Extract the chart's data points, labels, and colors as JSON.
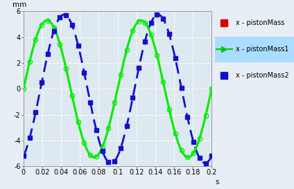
{
  "ylabel": "mm",
  "xlabel": "s",
  "xlim": [
    0,
    0.2
  ],
  "ylim": [
    -6,
    6
  ],
  "xticks": [
    0,
    0.02,
    0.04,
    0.06,
    0.08,
    0.1,
    0.12,
    0.14,
    0.16,
    0.18,
    0.2
  ],
  "yticks": [
    -6,
    -4,
    -2,
    0,
    2,
    4,
    6
  ],
  "fig_facecolor": "#e8eef5",
  "plot_facecolor": "#dde8f0",
  "grid_color": "#ffffff",
  "grid_linestyle": "--",
  "series1": {
    "label": "x - pistonMass",
    "color": "#ff0000",
    "amplitude": 5.3,
    "frequency": 10,
    "phase": 0.0
  },
  "series2": {
    "label": "x - pistonMass1",
    "color": "#00ee00",
    "amplitude": 5.3,
    "frequency": 10,
    "phase": 0.0,
    "linewidth": 2.2,
    "marker": "o",
    "markersize": 4.5,
    "n_markers": 32
  },
  "series3": {
    "label": "x - pistonMass2",
    "color": "#1111cc",
    "amplitude": 5.75,
    "frequency": 10,
    "phase": 0.018,
    "linewidth": 2.0,
    "marker": "s",
    "markersize": 4.5,
    "n_markers": 32,
    "linestyle": "--"
  },
  "legend": {
    "pistonMass_color": "#dd0000",
    "pistonMass1_color": "#00cc00",
    "pistonMass2_color": "#1111cc",
    "fontsize": 7.5,
    "highlight_bg": "#aaddff"
  }
}
